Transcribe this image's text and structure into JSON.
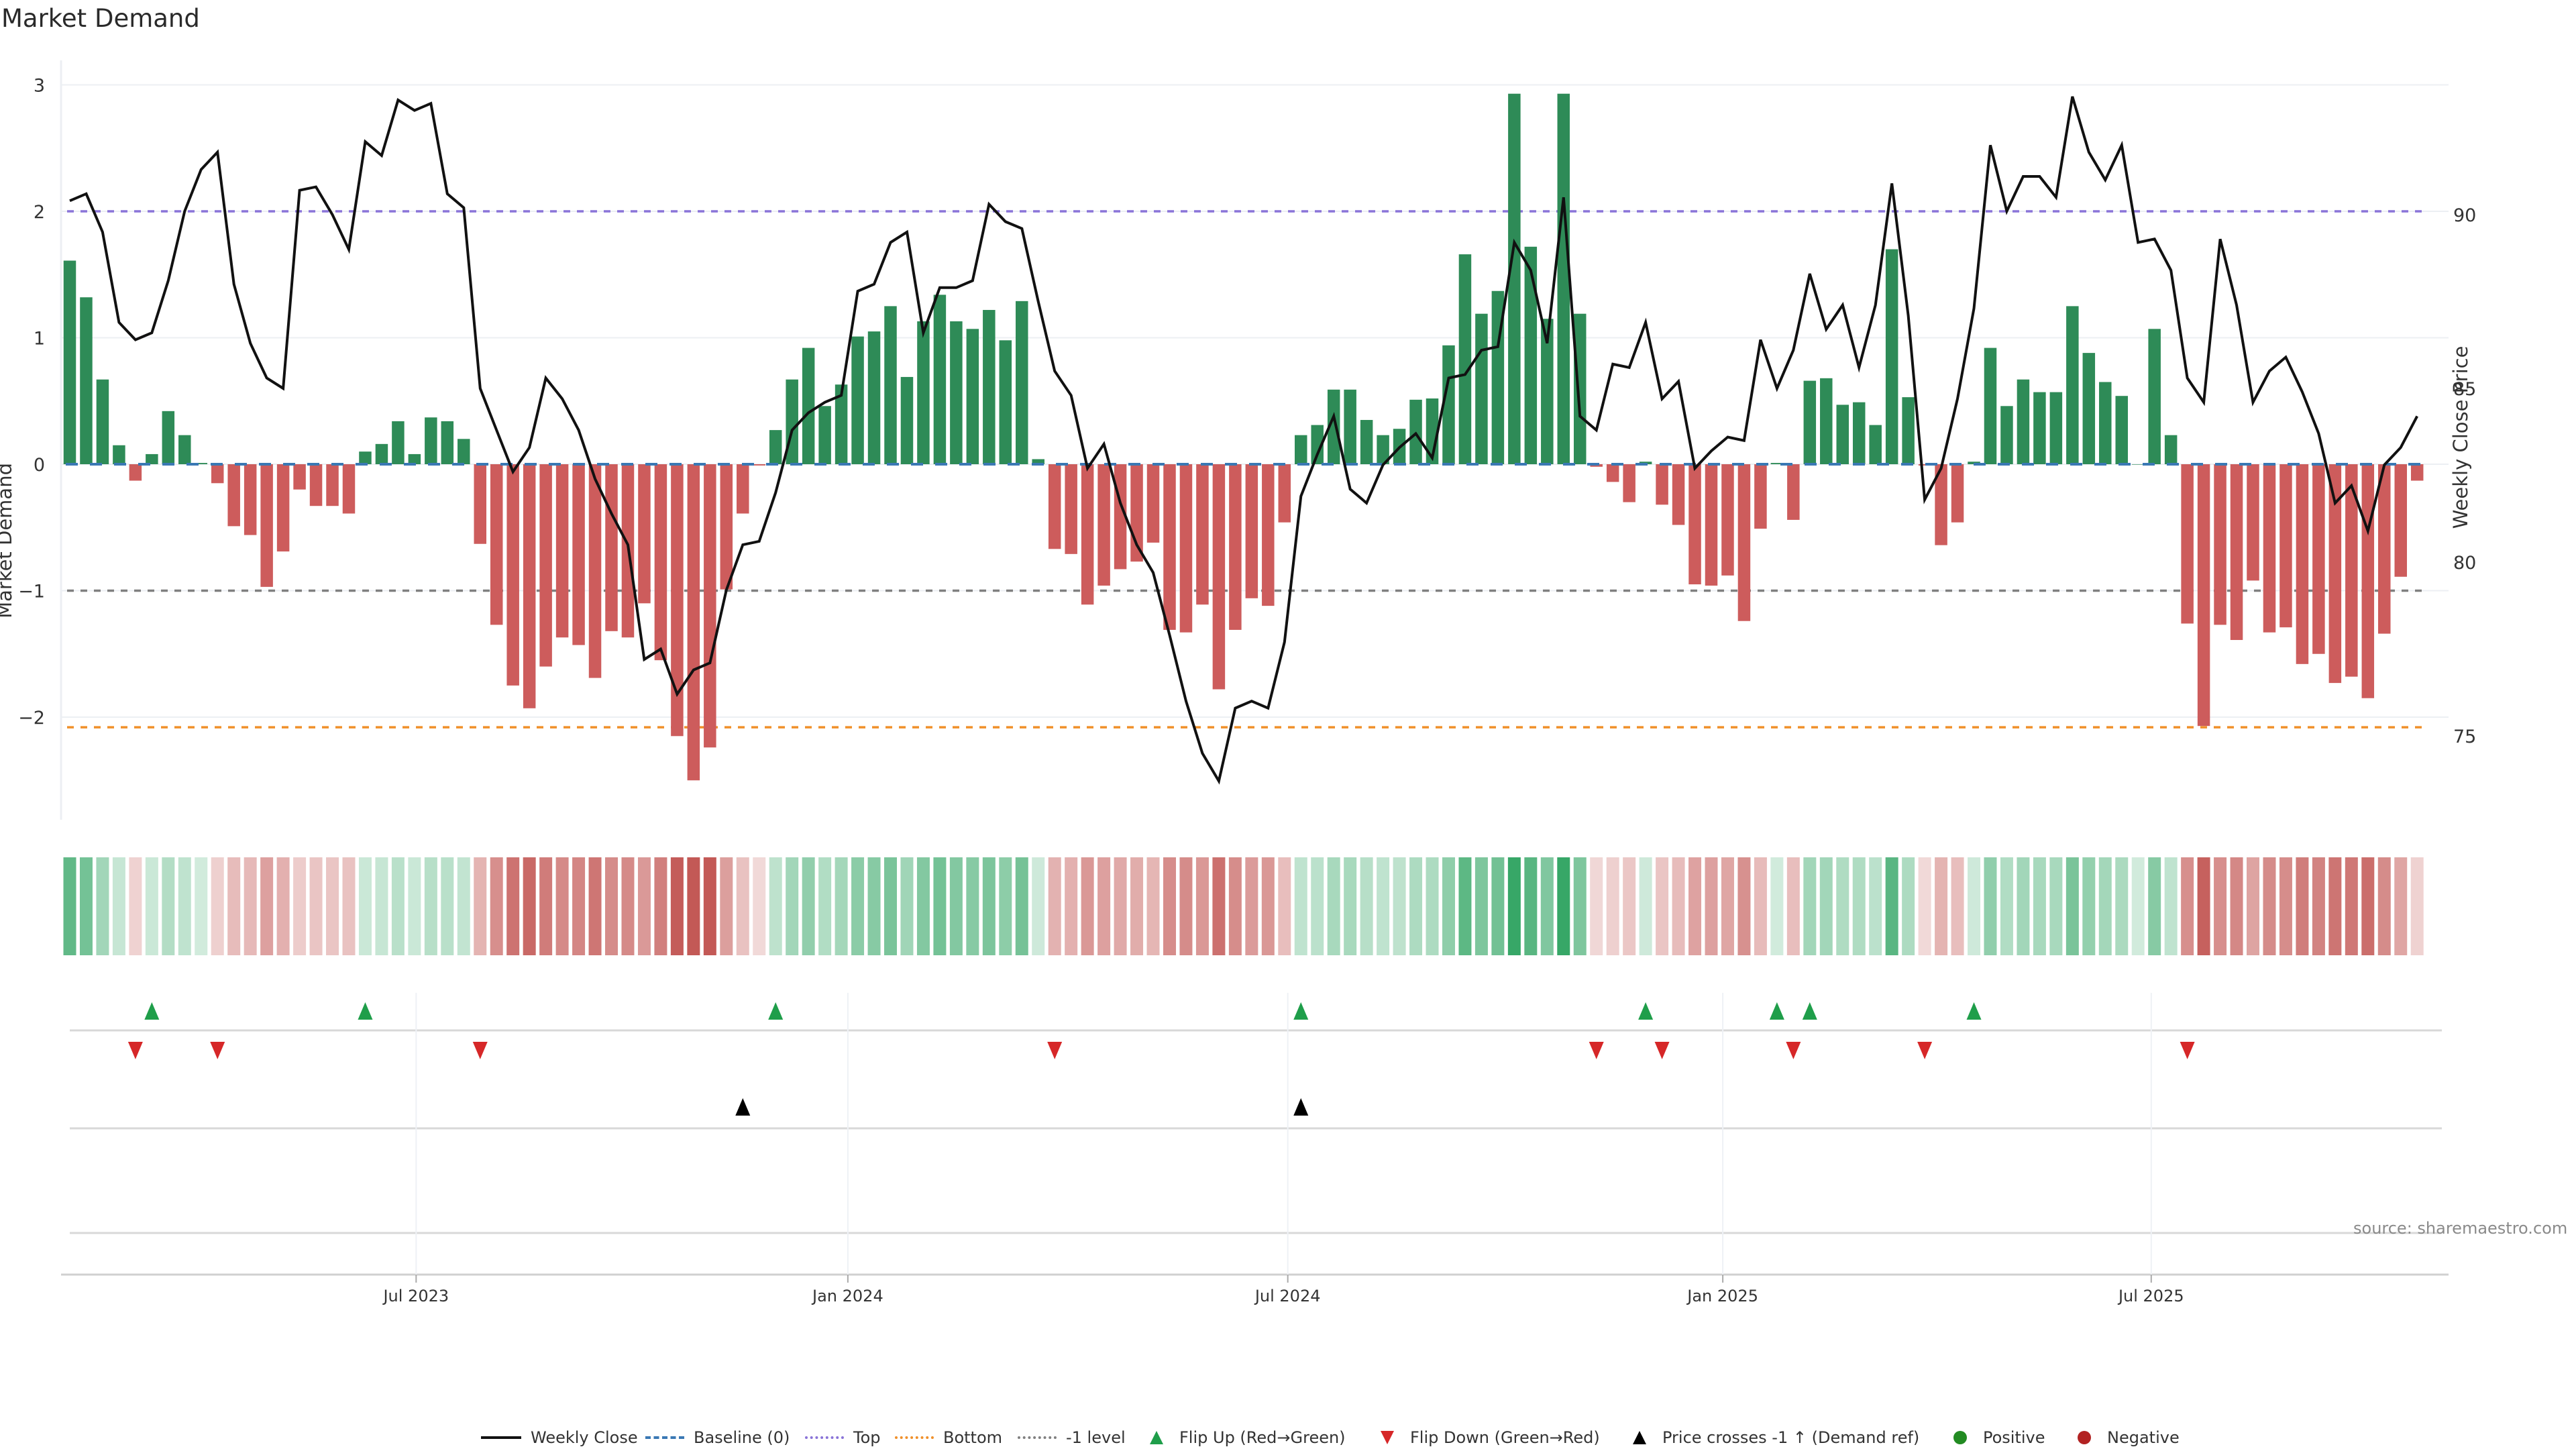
{
  "chart_data": {
    "type": "bar",
    "title": "Market Demand",
    "ylabel": "Market Demand",
    "y2label": "Weekly Close Price",
    "ylim": [
      -2.8,
      3.25
    ],
    "y2lim": [
      72.6,
      95.0
    ],
    "yticks": [
      3,
      2,
      1,
      0,
      -1,
      -2
    ],
    "ytick_labels": [
      "3",
      "2",
      "1",
      "0",
      "−1",
      "−2"
    ],
    "y2ticks": [
      90,
      85,
      80,
      75
    ],
    "y2tick_labels": [
      "90",
      "85",
      "80",
      "75"
    ],
    "x_unit": "week index",
    "xticks": [
      {
        "label": "Jul 2023",
        "week": 21.1
      },
      {
        "label": "Jan 2024",
        "week": 47.4
      },
      {
        "label": "Jul 2024",
        "week": 74.2
      },
      {
        "label": "Jan 2025",
        "week": 100.7
      },
      {
        "label": "Jul 2025",
        "week": 126.8
      }
    ],
    "reference_lines": [
      {
        "name": "Baseline (0)",
        "value": 0,
        "color": "#3a78b4",
        "style": "dashed"
      },
      {
        "name": "Top",
        "value": 2,
        "color": "#8a74d8",
        "style": "dotted"
      },
      {
        "name": "Bottom",
        "value": -2.08,
        "color": "#f0902a",
        "style": "dotted"
      },
      {
        "name": "-1 level",
        "value": -1,
        "color": "#808080",
        "style": "dotted"
      }
    ],
    "series": [
      {
        "name": "Market Demand",
        "kind": "bar",
        "positive_color": "#2e8b57",
        "negative_color": "#cd5c5c",
        "values": [
          1.61,
          1.32,
          0.67,
          0.15,
          -0.13,
          0.08,
          0.42,
          0.23,
          0.01,
          -0.15,
          -0.49,
          -0.56,
          -0.97,
          -0.69,
          -0.2,
          -0.33,
          -0.33,
          -0.39,
          0.1,
          0.16,
          0.34,
          0.08,
          0.37,
          0.34,
          0.2,
          -0.63,
          -1.27,
          -1.75,
          -1.93,
          -1.6,
          -1.37,
          -1.43,
          -1.69,
          -1.32,
          -1.37,
          -1.1,
          -1.55,
          -2.15,
          -2.5,
          -2.24,
          -0.99,
          -0.39,
          -0.01,
          0.27,
          0.67,
          0.92,
          0.46,
          0.63,
          1.01,
          1.05,
          1.25,
          0.69,
          1.13,
          1.34,
          1.13,
          1.07,
          1.22,
          0.98,
          1.29,
          0.04,
          -0.67,
          -0.71,
          -1.11,
          -0.96,
          -0.83,
          -0.77,
          -0.62,
          -1.31,
          -1.33,
          -1.11,
          -1.78,
          -1.31,
          -1.06,
          -1.12,
          -0.46,
          0.23,
          0.31,
          0.59,
          0.59,
          0.35,
          0.23,
          0.28,
          0.51,
          0.52,
          0.94,
          1.66,
          1.19,
          1.37,
          2.93,
          1.72,
          1.15,
          2.93,
          1.19,
          -0.02,
          -0.14,
          -0.3,
          0.02,
          -0.32,
          -0.48,
          -0.95,
          -0.96,
          -0.88,
          -1.24,
          -0.51,
          0.01,
          -0.44,
          0.66,
          0.68,
          0.47,
          0.49,
          0.31,
          1.7,
          0.53,
          -0.01,
          -0.64,
          -0.46,
          0.02,
          0.92,
          0.46,
          0.67,
          0.57,
          0.57,
          1.25,
          0.88,
          0.65,
          0.54,
          0.0,
          1.07,
          0.23,
          -1.26,
          -2.07,
          -1.27,
          -1.39,
          -0.92,
          -1.33,
          -1.29,
          -1.58,
          -1.5,
          -1.73,
          -1.68,
          -1.85,
          -1.34,
          -0.89,
          -0.13
        ]
      },
      {
        "name": "Weekly Close",
        "kind": "line",
        "axis": "right",
        "color": "#111111",
        "values": [
          90.4,
          90.6,
          89.5,
          86.9,
          86.4,
          86.6,
          88.1,
          90.1,
          91.3,
          91.8,
          88.0,
          86.3,
          85.3,
          85.0,
          90.7,
          90.8,
          90.0,
          89.0,
          92.1,
          91.7,
          93.3,
          93.0,
          93.2,
          90.6,
          90.2,
          85.0,
          83.8,
          82.6,
          83.3,
          85.3,
          84.7,
          83.8,
          82.4,
          81.4,
          80.5,
          77.2,
          77.5,
          76.2,
          76.9,
          77.1,
          79.2,
          80.5,
          80.6,
          82.0,
          83.8,
          84.3,
          84.6,
          84.8,
          87.8,
          88.0,
          89.2,
          89.5,
          86.6,
          87.9,
          87.9,
          88.1,
          90.3,
          89.8,
          89.6,
          87.5,
          85.5,
          84.8,
          82.7,
          83.4,
          81.7,
          80.5,
          79.7,
          77.9,
          76.0,
          74.5,
          73.7,
          75.8,
          76.0,
          75.8,
          77.7,
          81.9,
          83.1,
          84.2,
          82.1,
          81.7,
          82.8,
          83.3,
          83.7,
          83.0,
          85.3,
          85.4,
          86.1,
          86.2,
          89.2,
          88.4,
          86.3,
          90.5,
          84.2,
          83.8,
          85.7,
          85.6,
          86.9,
          84.7,
          85.2,
          82.7,
          83.2,
          83.6,
          83.5,
          86.4,
          85.0,
          86.1,
          88.3,
          86.7,
          87.4,
          85.6,
          87.4,
          90.9,
          87.1,
          81.8,
          82.7,
          84.7,
          87.3,
          92.0,
          90.1,
          91.1,
          91.1,
          90.5,
          93.4,
          91.8,
          91.0,
          92.0,
          89.2,
          89.3,
          88.4,
          85.3,
          84.6,
          89.3,
          87.4,
          84.6,
          85.5,
          85.9,
          84.9,
          83.7,
          81.7,
          82.2,
          80.9,
          82.8,
          83.3,
          84.2
        ]
      }
    ],
    "events": {
      "flip_up_weeks": [
        5,
        18,
        43,
        75,
        96,
        104,
        106,
        116
      ],
      "flip_down_weeks": [
        4,
        9,
        25,
        60,
        93,
        97,
        105,
        113,
        129
      ],
      "price_cross_weeks": [
        41,
        75
      ]
    },
    "colors": {
      "flip_up": "#1f9e4a",
      "flip_down": "#d62728",
      "price_cross": "#000000",
      "heat_positive": "#2ca25f",
      "heat_negative": "#c0504d"
    },
    "legend_position": "bottom-center",
    "grid": true
  },
  "legend": [
    {
      "label": "Weekly Close",
      "icon": "solid-line"
    },
    {
      "label": "Baseline (0)",
      "icon": "dashed-line"
    },
    {
      "label": "Top",
      "icon": "dotted-line-purple"
    },
    {
      "label": "Bottom",
      "icon": "dotted-line-orange"
    },
    {
      "label": "-1 level",
      "icon": "dotted-line-gray"
    },
    {
      "label": "Flip Up (Red→Green)",
      "icon": "triangle-up-green"
    },
    {
      "label": "Flip Down (Green→Red)",
      "icon": "triangle-down-red"
    },
    {
      "label": "Price crosses -1 ↑ (Demand ref)",
      "icon": "triangle-up-black"
    },
    {
      "label": "Positive",
      "icon": "circle-green"
    },
    {
      "label": "Negative",
      "icon": "circle-red"
    }
  ],
  "source": "source: sharemaestro.com"
}
